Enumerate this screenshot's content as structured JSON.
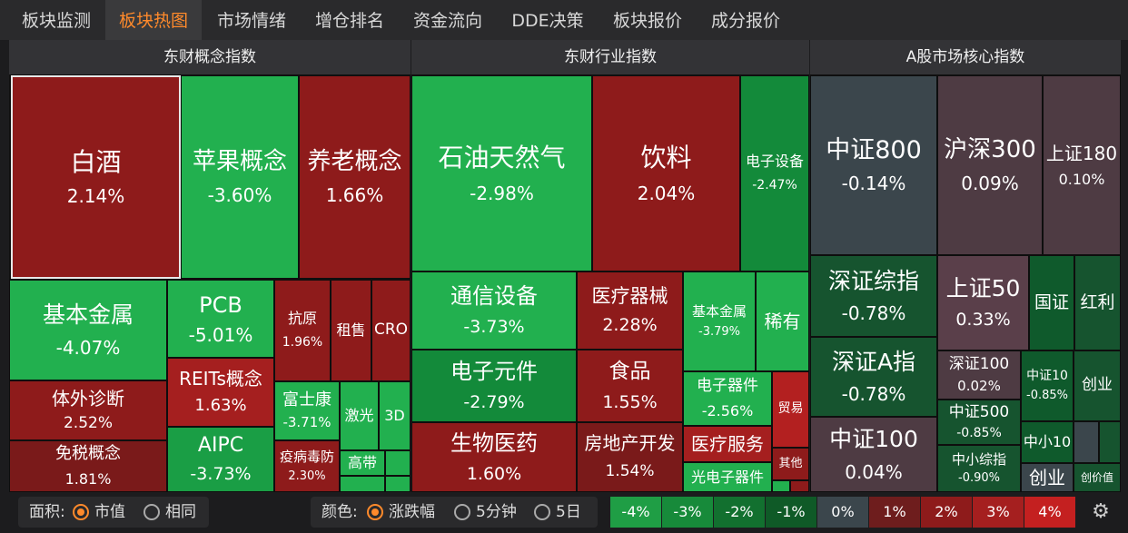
{
  "tabs": [
    "板块监测",
    "板块热图",
    "市场情绪",
    "增仓排名",
    "资金流向",
    "DDE决策",
    "板块报价",
    "成分报价"
  ],
  "panels": {
    "concept": {
      "title": "东财概念指数"
    },
    "industry": {
      "title": "东财行业指数"
    },
    "core": {
      "title": "A股市场核心指数"
    }
  },
  "concept_tiles": [
    {
      "name": "白酒",
      "pct": "2.14%"
    },
    {
      "name": "苹果概念",
      "pct": "-3.60%"
    },
    {
      "name": "养老概念",
      "pct": "1.66%"
    },
    {
      "name": "基本金属",
      "pct": "-4.07%"
    },
    {
      "name": "PCB",
      "pct": "-5.01%"
    },
    {
      "name": "抗原",
      "pct": "1.96%"
    },
    {
      "name": "租售",
      "pct": ""
    },
    {
      "name": "CRO",
      "pct": ""
    },
    {
      "name": "REITs概念",
      "pct": "1.63%"
    },
    {
      "name": "体外诊断",
      "pct": "2.52%"
    },
    {
      "name": "富士康",
      "pct": "-3.71%"
    },
    {
      "name": "激光",
      "pct": ""
    },
    {
      "name": "3D",
      "pct": ""
    },
    {
      "name": "免税概念",
      "pct": "1.81%"
    },
    {
      "name": "AIPC",
      "pct": "-3.73%"
    },
    {
      "name": "疫病毒防",
      "pct": "2.30%"
    },
    {
      "name": "高带",
      "pct": ""
    }
  ],
  "industry_tiles": [
    {
      "name": "石油天然气",
      "pct": "-2.98%"
    },
    {
      "name": "饮料",
      "pct": "2.04%"
    },
    {
      "name": "电子设备",
      "pct": "-2.47%"
    },
    {
      "name": "通信设备",
      "pct": "-3.73%"
    },
    {
      "name": "医疗器械",
      "pct": "2.28%"
    },
    {
      "name": "基本金属",
      "pct": "-3.79%"
    },
    {
      "name": "稀有",
      "pct": ""
    },
    {
      "name": "电子元件",
      "pct": "-2.79%"
    },
    {
      "name": "食品",
      "pct": "1.55%"
    },
    {
      "name": "电子器件",
      "pct": "-2.56%"
    },
    {
      "name": "贸易",
      "pct": ""
    },
    {
      "name": "生物医药",
      "pct": "1.60%"
    },
    {
      "name": "房地产开发",
      "pct": "1.54%"
    },
    {
      "name": "医疗服务",
      "pct": ""
    },
    {
      "name": "其他",
      "pct": ""
    },
    {
      "name": "光电子器件",
      "pct": ""
    }
  ],
  "core_tiles": [
    {
      "name": "中证800",
      "pct": "-0.14%"
    },
    {
      "name": "沪深300",
      "pct": "0.09%"
    },
    {
      "name": "上证180",
      "pct": "0.10%"
    },
    {
      "name": "深证综指",
      "pct": "-0.78%"
    },
    {
      "name": "上证50",
      "pct": "0.33%"
    },
    {
      "name": "国证",
      "pct": ""
    },
    {
      "name": "红利",
      "pct": ""
    },
    {
      "name": "深证A指",
      "pct": "-0.78%"
    },
    {
      "name": "深证100",
      "pct": "0.02%"
    },
    {
      "name": "中证10",
      "pct": "-0.85%"
    },
    {
      "name": "创业",
      "pct": ""
    },
    {
      "name": "中证500",
      "pct": "-0.85%"
    },
    {
      "name": "中证100",
      "pct": "0.04%"
    },
    {
      "name": "中小10",
      "pct": ""
    },
    {
      "name": "中小综指",
      "pct": "-0.90%"
    },
    {
      "name": "创业",
      "pct": ""
    },
    {
      "name": "创价值",
      "pct": ""
    }
  ],
  "footer": {
    "area_label": "面积:",
    "area_opt1": "市值",
    "area_opt2": "相同",
    "color_label": "颜色:",
    "color_opt1": "涨跌幅",
    "color_opt2": "5分钟",
    "color_opt3": "5日",
    "legend": [
      "-4%",
      "-3%",
      "-2%",
      "-1%",
      "0%",
      "1%",
      "2%",
      "3%",
      "4%"
    ],
    "legend_colors": [
      "#1f9e45",
      "#178a3a",
      "#12702f",
      "#0f5a27",
      "#3b464c",
      "#6e1d1d",
      "#8e1b1b",
      "#a51f1f",
      "#c42020"
    ]
  },
  "colors": {
    "accent": "#ff8a2b",
    "up": "#8e1b1b",
    "down": "#1a9e45"
  }
}
